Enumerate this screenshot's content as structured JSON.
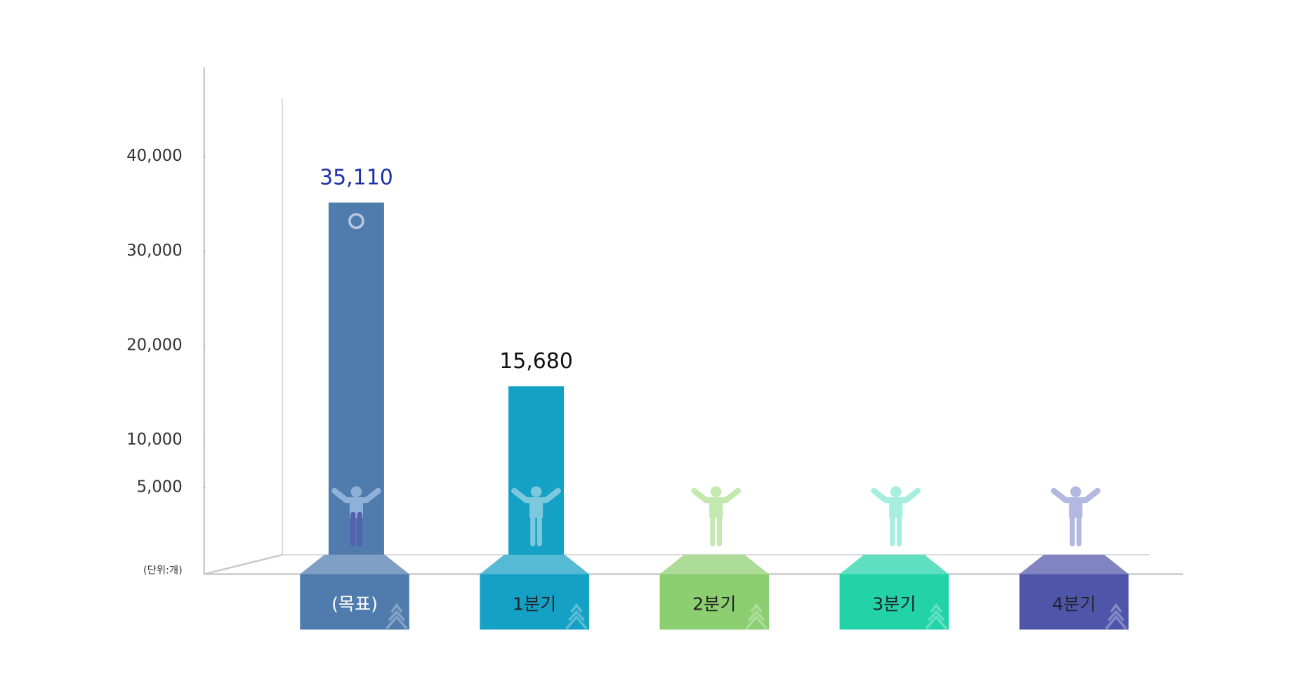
{
  "chart_data": {
    "type": "bar",
    "categories": [
      "(목표)",
      "1분기",
      "2분기",
      "3분기",
      "4분기"
    ],
    "values": [
      35110,
      15680,
      null,
      null,
      null
    ],
    "value_labels": [
      "35,110",
      "15,680",
      null,
      null,
      null
    ],
    "colors": [
      "#4f7bad",
      "#15a0c5",
      "#8ccf70",
      "#22d3a8",
      "#4f56aa"
    ],
    "value_label_colors": [
      "#1a2fa8",
      "#111111"
    ],
    "unit_label": "(단위:개)",
    "ylim": [
      0,
      46000
    ],
    "yticks": [
      {
        "value": 5000,
        "label": "5,000"
      },
      {
        "value": 10000,
        "label": "10,000"
      },
      {
        "value": 20000,
        "label": "20,000"
      },
      {
        "value": 30000,
        "label": "30,000"
      },
      {
        "value": 40000,
        "label": "40,000"
      }
    ]
  }
}
